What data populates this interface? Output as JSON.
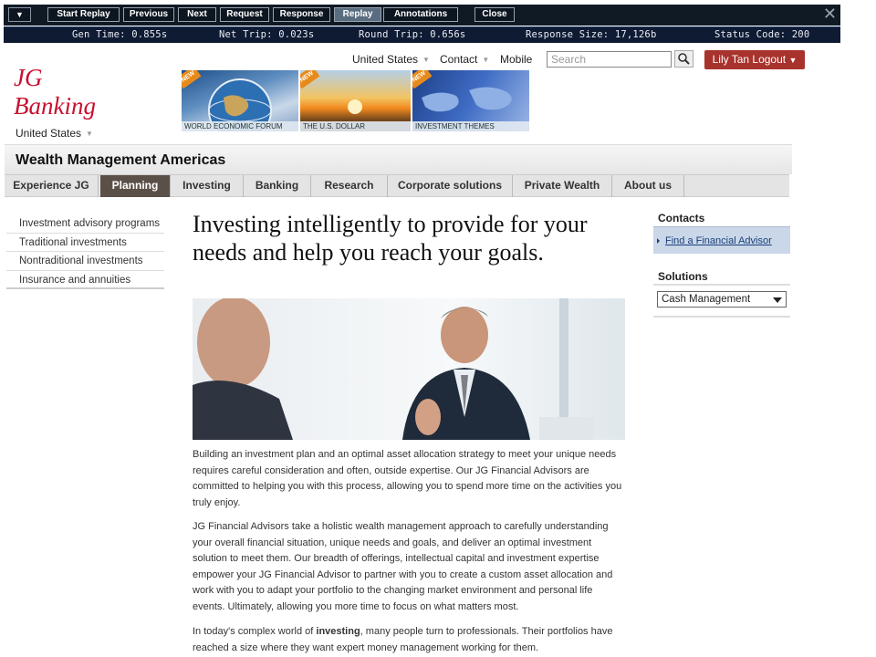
{
  "replay_toolbar": {
    "buttons": [
      "Start Replay",
      "Previous",
      "Next",
      "Request",
      "Response",
      "Replay",
      "Annotations",
      "Close"
    ],
    "active": "Replay",
    "stats": {
      "gen_time": "Gen Time: 0.855s",
      "net_trip": "Net Trip: 0.023s",
      "round_trip": "Round Trip: 0.656s",
      "response_size": "Response Size: 17,126b",
      "status_code": "Status Code: 200"
    }
  },
  "header": {
    "logo_line1": "JG",
    "logo_line2": "Banking",
    "country": "United States",
    "top_links": {
      "country": "United States",
      "contact": "Contact",
      "mobile": "Mobile"
    },
    "search_placeholder": "Search",
    "logout_label": "Lily Tan Logout",
    "banners": [
      "WORLD ECONOMIC FORUM",
      "THE U.S. DOLLAR",
      "INVESTMENT THEMES"
    ],
    "banner_badge": "NEW"
  },
  "section_title": "Wealth Management Americas",
  "main_nav": [
    "Experience JG",
    "Planning",
    "Investing",
    "Banking",
    "Research",
    "Corporate solutions",
    "Private Wealth",
    "About us"
  ],
  "main_nav_selected": "Planning",
  "left_nav": [
    "Investment advisory programs",
    "Traditional investments",
    "Nontraditional investments",
    "Insurance and annuities"
  ],
  "content": {
    "headline": "Investing intelligently to provide for your needs and help you reach your goals.",
    "para1": "Building an investment plan and an optimal asset allocation strategy to meet your unique needs requires careful consideration and often, outside expertise. Our JG Financial Advisors are committed to helping you with this process, allowing you to spend more time on the activities you truly enjoy.",
    "para2": "JG Financial Advisors take a holistic wealth management approach to carefully understanding your overall financial situation, unique needs and goals, and deliver an optimal investment solution to meet them. Our breadth of offerings, intellectual capital and investment expertise empower your JG Financial Advisor to partner with you to create a custom asset allocation and work with you to adapt your portfolio to the changing market environment and personal life events. Ultimately, allowing you more time to focus on what matters most.",
    "para3_before": "In today's complex world of ",
    "para3_bold": "investing",
    "para3_after": ", many people turn to professionals. Their portfolios have reached a size where they want expert money management working for them."
  },
  "right_column": {
    "contacts_title": "Contacts",
    "contacts_link": "Find a Financial Advisor",
    "solutions_title": "Solutions",
    "solutions_selected": "Cash Management"
  }
}
